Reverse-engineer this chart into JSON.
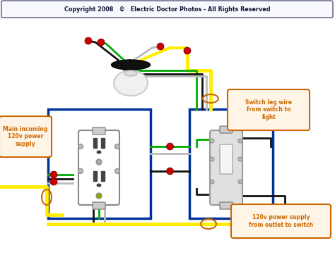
{
  "title": "Copyright 2008   ©   Electric Doctor Photos - All Rights Reserved",
  "bg_color": "#ffffff",
  "label1": "Main incoming\n120v power\nsupply",
  "label2": "Switch leg wire\nfrom switch to\nlight",
  "label3": "120v power supply\nfrom outlet to switch",
  "label_color": "#cc6600",
  "wire_yellow": "#ffee00",
  "wire_black": "#111111",
  "wire_green": "#00aa00",
  "wire_white": "#bbbbbb",
  "box_color": "#003399",
  "nut_color": "#cc0000"
}
